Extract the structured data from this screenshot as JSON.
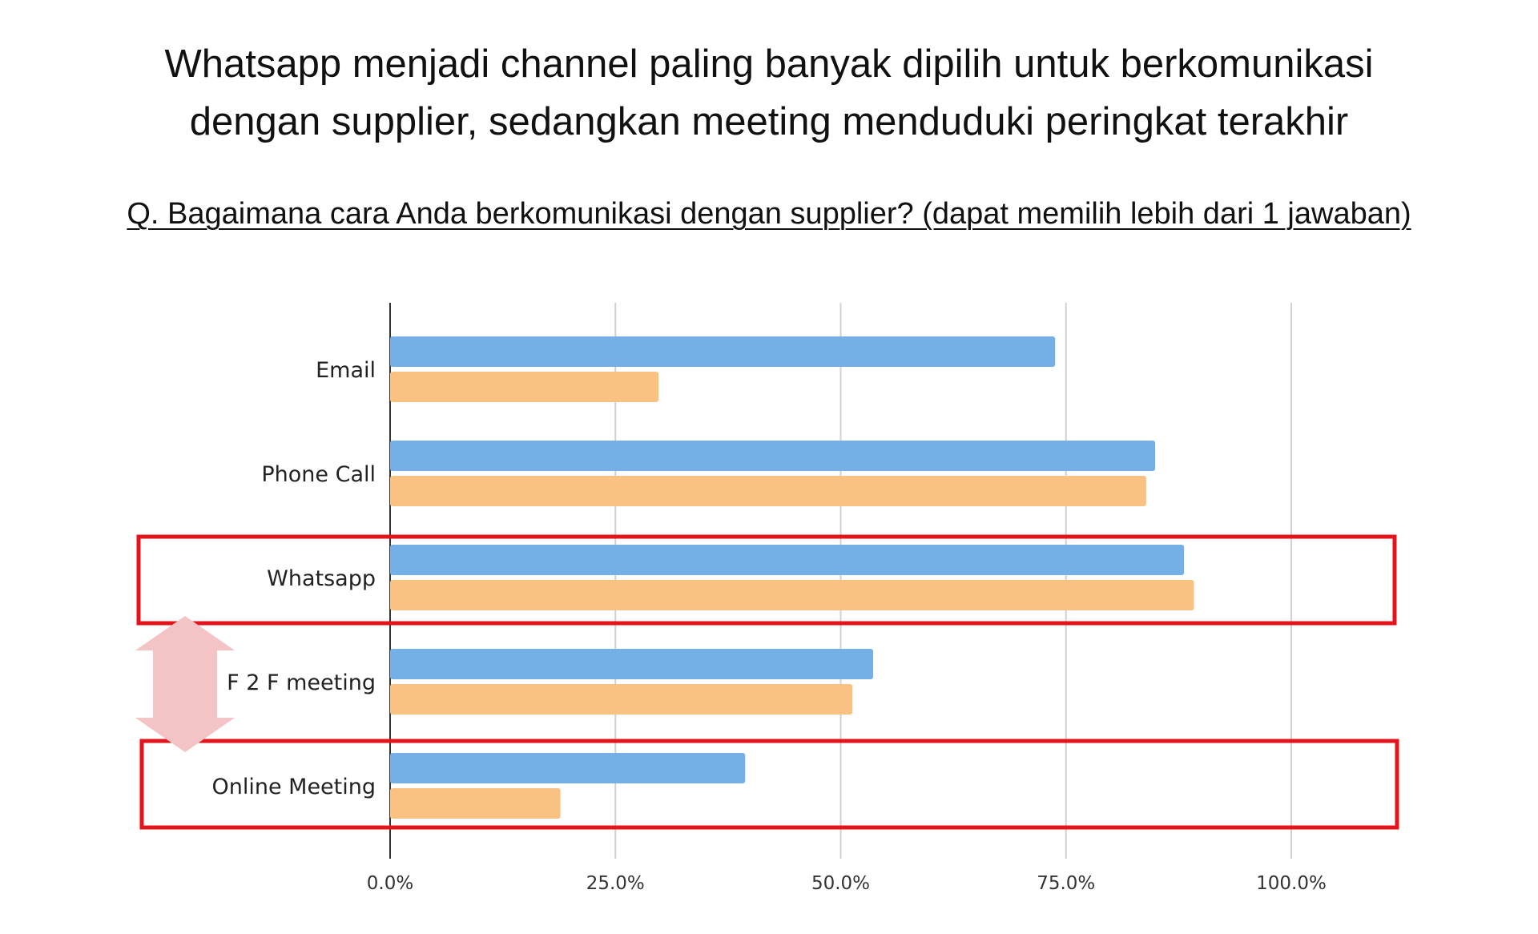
{
  "title_line1": "Whatsapp menjadi channel paling banyak dipilih untuk berkomunikasi",
  "title_line2": "dengan supplier, sedangkan meeting menduduki peringkat terakhir",
  "question": "Q. Bagaimana cara Anda berkomunikasi dengan supplier? (dapat memilih lebih dari 1 jawaban)",
  "colors": {
    "series1": "#74B0E6",
    "series2": "#F9C283",
    "highlight": "#E3141B",
    "arrow": "#F4C3C5",
    "grid": "#D0D0D0",
    "axis": "#333333"
  },
  "chart_data": {
    "type": "bar",
    "orientation": "horizontal",
    "categories": [
      "Email",
      "Phone Call",
      "Whatsapp",
      "F 2 F meeting",
      "Online Meeting"
    ],
    "series": [
      {
        "values": [
          73.8,
          84.9,
          88.1,
          53.6,
          39.4
        ]
      },
      {
        "values": [
          29.8,
          83.9,
          89.2,
          51.3,
          18.9
        ]
      }
    ],
    "xlim": [
      0,
      100
    ],
    "xticks": [
      0,
      25,
      50,
      75,
      100
    ],
    "xtick_labels": [
      "0.0%",
      "25.0%",
      "50.0%",
      "75.0%",
      "100.0%"
    ],
    "grid": true,
    "legend": "none",
    "highlighted_categories": [
      "Whatsapp",
      "Online Meeting"
    ],
    "annotation": "double-headed arrow between Whatsapp and Online Meeting"
  }
}
